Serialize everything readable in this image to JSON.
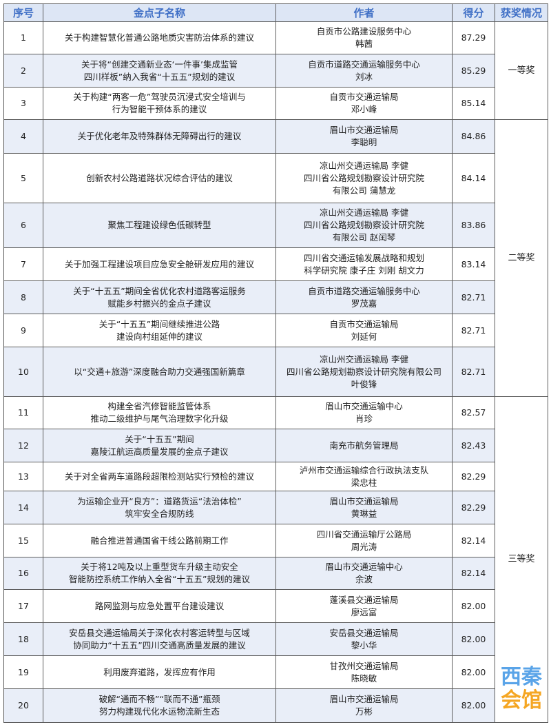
{
  "header": {
    "index": "序号",
    "title": "金点子名称",
    "author": "作者",
    "score": "得分",
    "award": "获奖情况"
  },
  "rows": [
    {
      "no": "1",
      "title": [
        "关于构建智慧化普通公路地质灾害防治体系的建议"
      ],
      "author": [
        "自贡市公路建设服务中心",
        "韩茜"
      ],
      "score": "87.29"
    },
    {
      "no": "2",
      "title": [
        "关于将“创建交通新业态‘一件事’集成监管",
        "四川样板”纳入我省“十五五”规划的建议"
      ],
      "author": [
        "自贡市道路交通运输服务中心",
        "刘冰"
      ],
      "score": "85.29"
    },
    {
      "no": "3",
      "title": [
        "关于构建“两客一危”驾驶员沉浸式安全培训与",
        "行为智能干预体系的建议"
      ],
      "author": [
        "自贡市交通运输局",
        "邓小峰"
      ],
      "score": "85.14"
    },
    {
      "no": "4",
      "title": [
        "关于优化老年及特殊群体无障碍出行的建议"
      ],
      "author": [
        "眉山市交通运输局",
        "李聪明"
      ],
      "score": "84.86"
    },
    {
      "no": "5",
      "title": [
        "创新农村公路道路状况综合评估的建议"
      ],
      "author": [
        "凉山州交通运输局 李健",
        "四川省公路规划勘察设计研究院",
        "有限公司 蒲慧龙"
      ],
      "score": "84.14"
    },
    {
      "no": "6",
      "title": [
        "聚焦工程建设绿色低碳转型"
      ],
      "author": [
        "凉山州交通运输局 李健",
        "四川省公路规划勘察设计研究院",
        "有限公司 赵闰琴"
      ],
      "score": "83.86"
    },
    {
      "no": "7",
      "title": [
        "关于加强工程建设项目应急安全舱研发应用的建议"
      ],
      "author": [
        "四川省交通运输发展战略和规划",
        "科学研究院 康子庄 刘刚 胡文力"
      ],
      "score": "83.14"
    },
    {
      "no": "8",
      "title": [
        "关于“十五五”期间全省优化农村道路客运服务",
        "赋能乡村振兴的金点子建议"
      ],
      "author": [
        "自贡市道路交通运输服务中心",
        "罗茂嘉"
      ],
      "score": "82.71"
    },
    {
      "no": "9",
      "title": [
        "关于“十五五”期间继续推进公路",
        "建设向村组延伸的建议"
      ],
      "author": [
        "自贡市交通运输局",
        "刘延何"
      ],
      "score": "82.71"
    },
    {
      "no": "10",
      "title": [
        "以“交通+旅游”深度融合助力交通强国新篇章"
      ],
      "author": [
        "凉山州交通运输局 李健",
        "四川省公路规划勘察设计研究院有限公司",
        "叶俊锋"
      ],
      "score": "82.71"
    },
    {
      "no": "11",
      "title": [
        "构建全省汽修智能监管体系",
        "推动二级维护与尾气治理数字化升级"
      ],
      "author": [
        "眉山市交通运输中心",
        "肖珍"
      ],
      "score": "82.57"
    },
    {
      "no": "12",
      "title": [
        "关于“十五五”期间",
        "嘉陵江航运高质量发展的金点子建议"
      ],
      "author": [
        "南充市航务管理局"
      ],
      "score": "82.43"
    },
    {
      "no": "13",
      "title": [
        "关于对全省两车道路段超限检测站实行预检的建议"
      ],
      "author": [
        "泸州市交通运输综合行政执法支队",
        "梁忠柱"
      ],
      "score": "82.29"
    },
    {
      "no": "14",
      "title": [
        "为运输企业开“良方”：道路货运“法治体检”",
        "筑牢安全合规防线"
      ],
      "author": [
        "眉山市交通运输局",
        "黄琳益"
      ],
      "score": "82.29"
    },
    {
      "no": "15",
      "title": [
        "融合推进普通国省干线公路前期工作"
      ],
      "author": [
        "四川省交通运输厅公路局",
        "周光涛"
      ],
      "score": "82.14"
    },
    {
      "no": "16",
      "title": [
        "关于将12吨及以上重型货车升级主动安全",
        "智能防控系统工作纳入全省“十五五”规划的建议"
      ],
      "author": [
        "眉山市交通运输中心",
        "余波"
      ],
      "score": "82.14"
    },
    {
      "no": "17",
      "title": [
        "路网监测与应急处置平台建设建议"
      ],
      "author": [
        "蓬溪县交通运输局",
        "廖远富"
      ],
      "score": "82.00"
    },
    {
      "no": "18",
      "title": [
        "安岳县交通运输局关于深化农村客运转型与区域",
        "协同助力“十五五”四川交通高质量发展的建议"
      ],
      "author": [
        "安岳县交通运输局",
        "黎小华"
      ],
      "score": "82.00"
    },
    {
      "no": "19",
      "title": [
        "利用废弃道路，发挥应有作用"
      ],
      "author": [
        "甘孜州交通运输局",
        "陈晓敏"
      ],
      "score": "82.00"
    },
    {
      "no": "20",
      "title": [
        "破解“通而不畅”“联而不通”瓶颈",
        "努力构建现代化水运物流新生态"
      ],
      "author": [
        "眉山市交通运输局",
        "万彬"
      ],
      "score": "82.00"
    }
  ],
  "awards": [
    {
      "label": "一等奖",
      "start": 1,
      "span": 3
    },
    {
      "label": "二等奖",
      "start": 4,
      "span": 7
    },
    {
      "label": "三等奖",
      "start": 11,
      "span": 10
    }
  ],
  "watermark": {
    "part1": "西秦",
    "part2": "会馆"
  },
  "colors": {
    "header_bg": "#dde6f5",
    "header_text": "#3f6fc6",
    "alt_row_bg": "#e9eef8"
  }
}
